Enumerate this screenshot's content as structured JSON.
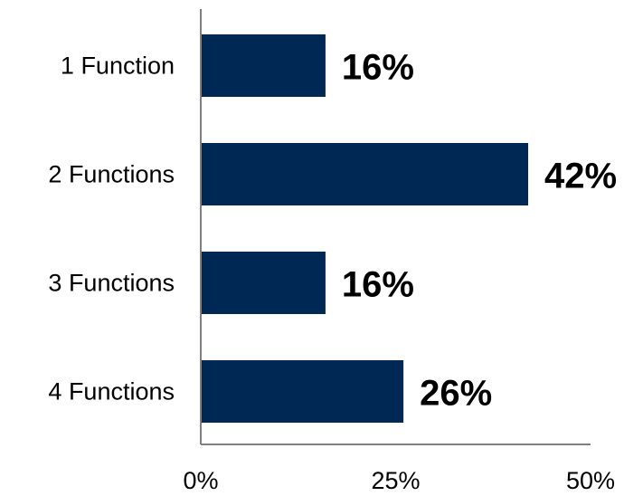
{
  "chart_data": {
    "type": "bar",
    "orientation": "horizontal",
    "categories": [
      "1 Function",
      "2 Functions",
      "3 Functions",
      "4 Functions"
    ],
    "values": [
      16,
      42,
      16,
      26
    ],
    "data_labels": [
      "16%",
      "42%",
      "16%",
      "26%"
    ],
    "x_ticks": [
      0,
      25,
      50
    ],
    "x_tick_labels": [
      "0%",
      "25%",
      "50%"
    ],
    "xlim": [
      0,
      50
    ],
    "grid": false,
    "legend": "none",
    "bar_color": "#002855"
  }
}
